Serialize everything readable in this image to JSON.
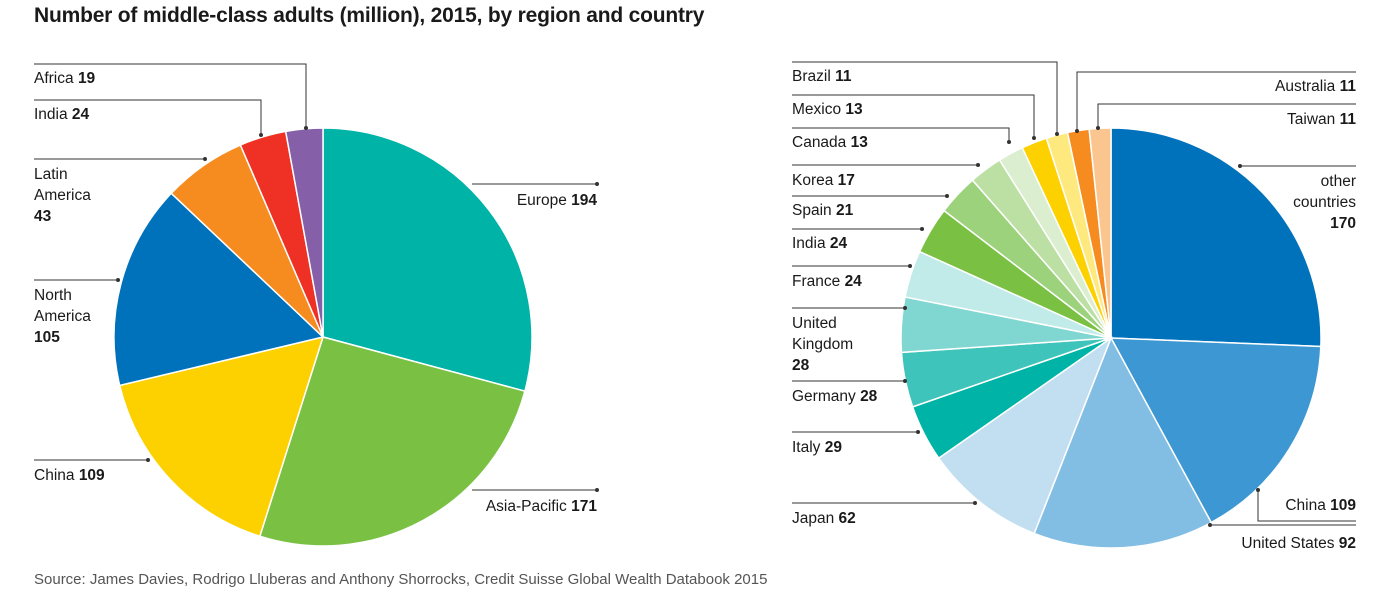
{
  "title": "Number of middle-class adults (million), 2015, by region and country",
  "source": "Source: James Davies, Rodrigo Lluberas and Anthony Shorrocks, Credit Suisse Global Wealth Databook 2015",
  "chart_data": [
    {
      "type": "pie",
      "title": "Number of middle-class adults (million), 2015, by region",
      "slices": [
        {
          "label": "Europe",
          "value": 194,
          "color": "#00b3a7"
        },
        {
          "label": "Asia-Pacific",
          "value": 171,
          "color": "#7ac143"
        },
        {
          "label": "China",
          "value": 109,
          "color": "#fdd000"
        },
        {
          "label": "North America",
          "value": 105,
          "color": "#0072bc"
        },
        {
          "label": "Latin America",
          "value": 43,
          "color": "#f68b1f"
        },
        {
          "label": "India",
          "value": 24,
          "color": "#ee3124"
        },
        {
          "label": "Africa",
          "value": 19,
          "color": "#8560a8"
        }
      ]
    },
    {
      "type": "pie",
      "title": "Number of middle-class adults (million), 2015, by country",
      "slices": [
        {
          "label": "other countries",
          "value": 170,
          "color": "#0072bc"
        },
        {
          "label": "China",
          "value": 109,
          "color": "#3d97d3"
        },
        {
          "label": "United States",
          "value": 92,
          "color": "#82bde3"
        },
        {
          "label": "Japan",
          "value": 62,
          "color": "#c2dff1"
        },
        {
          "label": "Italy",
          "value": 29,
          "color": "#00b3a7"
        },
        {
          "label": "Germany",
          "value": 28,
          "color": "#3fc4bb"
        },
        {
          "label": "United Kingdom",
          "value": 28,
          "color": "#80d7d2"
        },
        {
          "label": "France",
          "value": 24,
          "color": "#c0ebe8"
        },
        {
          "label": "India",
          "value": 24,
          "color": "#7ac143"
        },
        {
          "label": "Spain",
          "value": 21,
          "color": "#9bd27b"
        },
        {
          "label": "Korea",
          "value": 17,
          "color": "#bce0a4"
        },
        {
          "label": "Canada",
          "value": 13,
          "color": "#dbeed0"
        },
        {
          "label": "Mexico",
          "value": 13,
          "color": "#fdd000"
        },
        {
          "label": "Brazil",
          "value": 11,
          "color": "#fee97f"
        },
        {
          "label": "Australia",
          "value": 11,
          "color": "#f68b1f"
        },
        {
          "label": "Taiwan",
          "value": 11,
          "color": "#fbc590"
        }
      ]
    }
  ]
}
